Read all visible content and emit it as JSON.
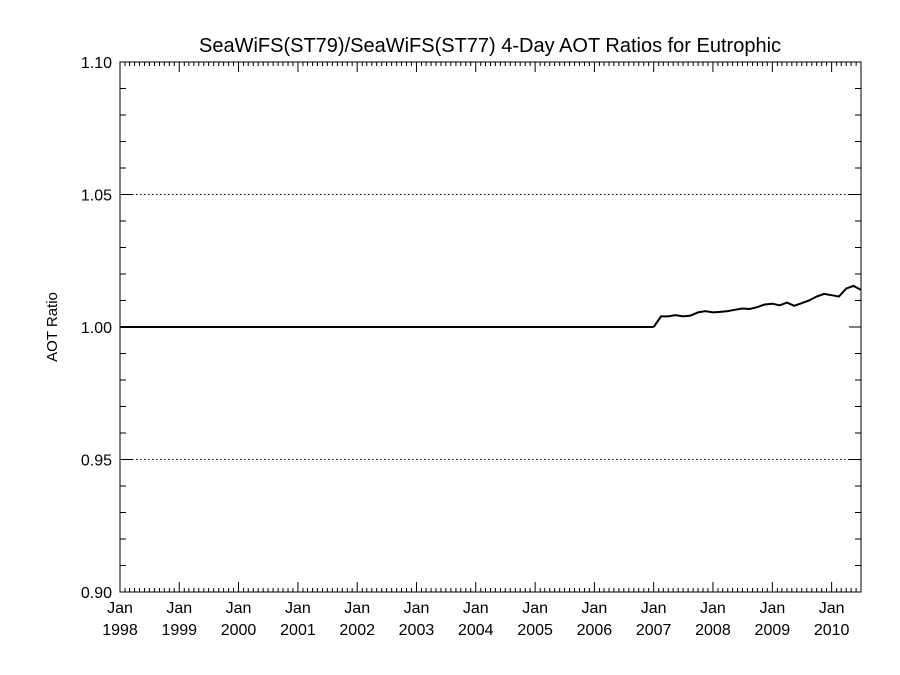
{
  "chart_data": {
    "type": "line",
    "title": "SeaWiFS(ST79)/SeaWiFS(ST77) 4-Day AOT Ratios for Eutrophic",
    "xlabel": "",
    "ylabel": "AOT Ratio",
    "ylim": [
      0.9,
      1.1
    ],
    "xlim": [
      "1998-01-01",
      "2010-07-01"
    ],
    "yticks": [
      "0.90",
      "0.95",
      "1.00",
      "1.05",
      "1.10"
    ],
    "xticks": [
      {
        "date": "1998-01-01",
        "line1": "Jan",
        "line2": "1998"
      },
      {
        "date": "1999-01-01",
        "line1": "Jan",
        "line2": "1999"
      },
      {
        "date": "2000-01-01",
        "line1": "Jan",
        "line2": "2000"
      },
      {
        "date": "2001-01-01",
        "line1": "Jan",
        "line2": "2001"
      },
      {
        "date": "2002-01-01",
        "line1": "Jan",
        "line2": "2002"
      },
      {
        "date": "2003-01-01",
        "line1": "Jan",
        "line2": "2003"
      },
      {
        "date": "2004-01-01",
        "line1": "Jan",
        "line2": "2004"
      },
      {
        "date": "2005-01-01",
        "line1": "Jan",
        "line2": "2005"
      },
      {
        "date": "2006-01-01",
        "line1": "Jan",
        "line2": "2006"
      },
      {
        "date": "2007-01-01",
        "line1": "Jan",
        "line2": "2007"
      },
      {
        "date": "2008-01-01",
        "line1": "Jan",
        "line2": "2008"
      },
      {
        "date": "2009-01-01",
        "line1": "Jan",
        "line2": "2009"
      },
      {
        "date": "2010-01-01",
        "line1": "Jan",
        "line2": "2010"
      }
    ],
    "grid": "dotted horizontal at 0.95, 1.05, 1.10",
    "reference_line": 1.0,
    "series": [
      {
        "x": [
          "1998-01-01",
          "2006-12-31"
        ],
        "y": [
          1.0,
          1.0
        ]
      },
      {
        "x": [
          "2007-01-01",
          "2007-02-15",
          "2007-04-01",
          "2007-05-15",
          "2007-07-01",
          "2007-08-15",
          "2007-10-01",
          "2007-11-15",
          "2008-01-01",
          "2008-02-15",
          "2008-04-01",
          "2008-05-15",
          "2008-07-01",
          "2008-08-15",
          "2008-10-01",
          "2008-11-15",
          "2009-01-01",
          "2009-02-15",
          "2009-04-01",
          "2009-05-15",
          "2009-07-01",
          "2009-08-15",
          "2009-10-01",
          "2009-11-15",
          "2010-01-01",
          "2010-02-15",
          "2010-04-01",
          "2010-05-15",
          "2010-07-01"
        ],
        "y": [
          1.0,
          1.004,
          1.004,
          1.0045,
          1.004,
          1.0043,
          1.0055,
          1.006,
          1.0055,
          1.0057,
          1.006,
          1.0065,
          1.007,
          1.0068,
          1.0075,
          1.0085,
          1.0088,
          1.0082,
          1.0092,
          1.008,
          1.009,
          1.01,
          1.0115,
          1.0125,
          1.012,
          1.0115,
          1.0145,
          1.0155,
          1.014
        ]
      }
    ]
  }
}
